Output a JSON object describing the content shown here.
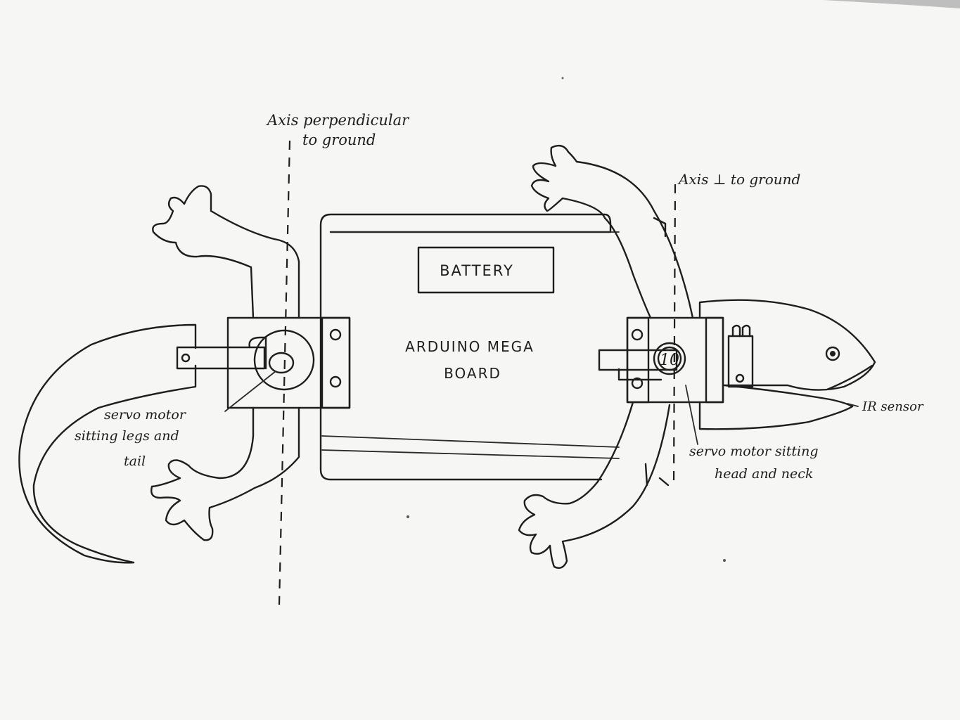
{
  "labels": {
    "axis_left_line1": "Axis perpendicular",
    "axis_left_line2": "to ground",
    "axis_right": "Axis ⊥ to ground",
    "battery": "BATTERY",
    "board_line1": "ARDUINO MEGA",
    "board_line2": "BOARD",
    "servo_left_line1": "servo motor",
    "servo_left_line2": "sitting legs and",
    "servo_left_line3": "tail",
    "servo_right_line1": "servo motor sitting",
    "servo_right_line2": "head and neck",
    "ir_sensor": "IR sensor",
    "servo_right_horn": "10"
  },
  "colors": {
    "paper": "#f6f6f4",
    "ink": "#1e1e1e"
  }
}
